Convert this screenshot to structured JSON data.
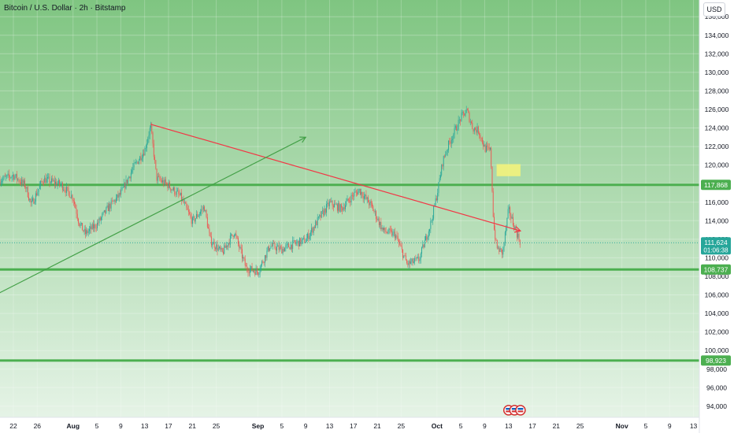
{
  "header": {
    "title": "Bitcoin / U.S. Dollar · 2h · Bitstamp",
    "currency_button": "USD"
  },
  "colors": {
    "background_top": "#7fc581",
    "background_bottom": "#e9f5ea",
    "up_candle": "#26a69a",
    "down_candle": "#ef5350",
    "level_line": "#4caf50",
    "trend_red": "#f23645",
    "trend_green": "#43a047",
    "zone": "#f2f37c",
    "current_price_bg": "#26a69a"
  },
  "chart_data": {
    "type": "candlestick",
    "ylim": [
      92800,
      137800
    ],
    "xlim": [
      "2025-07-19",
      "2025-11-16"
    ],
    "yticks": [
      "94,000",
      "96,000",
      "98,000",
      "100,000",
      "102,000",
      "104,000",
      "106,000",
      "108,000",
      "110,000",
      "112,000",
      "114,000",
      "116,000",
      "118,000",
      "120,000",
      "122,000",
      "124,000",
      "126,000",
      "128,000",
      "130,000",
      "132,000",
      "134,000",
      "136,000"
    ],
    "xticks": [
      {
        "date": "2025-07-22",
        "label": "22"
      },
      {
        "date": "2025-07-26",
        "label": "26"
      },
      {
        "date": "2025-08-01",
        "label": "Aug",
        "bold": true
      },
      {
        "date": "2025-08-05",
        "label": "5"
      },
      {
        "date": "2025-08-09",
        "label": "9"
      },
      {
        "date": "2025-08-13",
        "label": "13"
      },
      {
        "date": "2025-08-17",
        "label": "17"
      },
      {
        "date": "2025-08-21",
        "label": "21"
      },
      {
        "date": "2025-08-25",
        "label": "25"
      },
      {
        "date": "2025-09-01",
        "label": "Sep",
        "bold": true
      },
      {
        "date": "2025-09-05",
        "label": "5"
      },
      {
        "date": "2025-09-09",
        "label": "9"
      },
      {
        "date": "2025-09-13",
        "label": "13"
      },
      {
        "date": "2025-09-17",
        "label": "17"
      },
      {
        "date": "2025-09-21",
        "label": "21"
      },
      {
        "date": "2025-09-25",
        "label": "25"
      },
      {
        "date": "2025-10-01",
        "label": "Oct",
        "bold": true
      },
      {
        "date": "2025-10-05",
        "label": "5"
      },
      {
        "date": "2025-10-09",
        "label": "9"
      },
      {
        "date": "2025-10-13",
        "label": "13"
      },
      {
        "date": "2025-10-17",
        "label": "17"
      },
      {
        "date": "2025-10-21",
        "label": "21"
      },
      {
        "date": "2025-10-25",
        "label": "25"
      },
      {
        "date": "2025-11-01",
        "label": "Nov",
        "bold": true
      },
      {
        "date": "2025-11-05",
        "label": "5"
      },
      {
        "date": "2025-11-09",
        "label": "9"
      },
      {
        "date": "2025-11-13",
        "label": "13"
      }
    ],
    "path": [
      [
        "2025-07-19",
        118200
      ],
      [
        "2025-07-22",
        118900
      ],
      [
        "2025-07-24",
        117800
      ],
      [
        "2025-07-25",
        115700
      ],
      [
        "2025-07-27",
        118500
      ],
      [
        "2025-07-30",
        117900
      ],
      [
        "2025-08-01",
        116500
      ],
      [
        "2025-08-02",
        113800
      ],
      [
        "2025-08-03",
        112600
      ],
      [
        "2025-08-05",
        113600
      ],
      [
        "2025-08-07",
        115500
      ],
      [
        "2025-08-09",
        116900
      ],
      [
        "2025-08-11",
        119600
      ],
      [
        "2025-08-13",
        121600
      ],
      [
        "2025-08-14",
        124200
      ],
      [
        "2025-08-15",
        118600
      ],
      [
        "2025-08-17",
        117800
      ],
      [
        "2025-08-19",
        116600
      ],
      [
        "2025-08-21",
        113900
      ],
      [
        "2025-08-23",
        115500
      ],
      [
        "2025-08-24",
        111900
      ],
      [
        "2025-08-26",
        110500
      ],
      [
        "2025-08-28",
        112800
      ],
      [
        "2025-08-30",
        108900
      ],
      [
        "2025-09-01",
        108500
      ],
      [
        "2025-09-03",
        111300
      ],
      [
        "2025-09-05",
        110900
      ],
      [
        "2025-09-07",
        111500
      ],
      [
        "2025-09-09",
        111900
      ],
      [
        "2025-09-11",
        114000
      ],
      [
        "2025-09-13",
        115900
      ],
      [
        "2025-09-15",
        115300
      ],
      [
        "2025-09-17",
        116800
      ],
      [
        "2025-09-18",
        117300
      ],
      [
        "2025-09-20",
        115600
      ],
      [
        "2025-09-22",
        112900
      ],
      [
        "2025-09-24",
        112500
      ],
      [
        "2025-09-26",
        109300
      ],
      [
        "2025-09-28",
        109800
      ],
      [
        "2025-09-30",
        113800
      ],
      [
        "2025-10-01",
        116800
      ],
      [
        "2025-10-02",
        120500
      ],
      [
        "2025-10-03",
        122300
      ],
      [
        "2025-10-05",
        125100
      ],
      [
        "2025-10-06",
        125900
      ],
      [
        "2025-10-07",
        124000
      ],
      [
        "2025-10-08",
        123700
      ],
      [
        "2025-10-09",
        121800
      ],
      [
        "2025-10-10",
        121500
      ],
      [
        "2025-10-10.5",
        113500
      ],
      [
        "2025-10-11",
        111100
      ],
      [
        "2025-10-12",
        110500
      ],
      [
        "2025-10-13",
        115200
      ],
      [
        "2025-10-14",
        113300
      ],
      [
        "2025-10-15",
        111624
      ]
    ],
    "levels": [
      {
        "price": 117868,
        "label": "117,868"
      },
      {
        "price": 108737,
        "label": "108,737"
      },
      {
        "price": 98923,
        "label": "98,923"
      }
    ],
    "current_price": {
      "price": 111624,
      "label": "111,624",
      "countdown": "01:06:38"
    },
    "zone": {
      "x0": "2025-10-11",
      "x1": "2025-10-15",
      "y0": 118800,
      "y1": 120100
    },
    "trendlines": [
      {
        "color": "red",
        "points": [
          [
            "2025-08-14",
            124400
          ],
          [
            "2025-10-15",
            112900
          ]
        ],
        "arrow": true
      },
      {
        "color": "green",
        "points": [
          [
            "2025-07-19",
            106000
          ],
          [
            "2025-09-09",
            123000
          ]
        ],
        "arrow": true
      }
    ],
    "events": [
      {
        "date": "2025-10-13"
      },
      {
        "date": "2025-10-14"
      },
      {
        "date": "2025-10-15"
      }
    ]
  }
}
